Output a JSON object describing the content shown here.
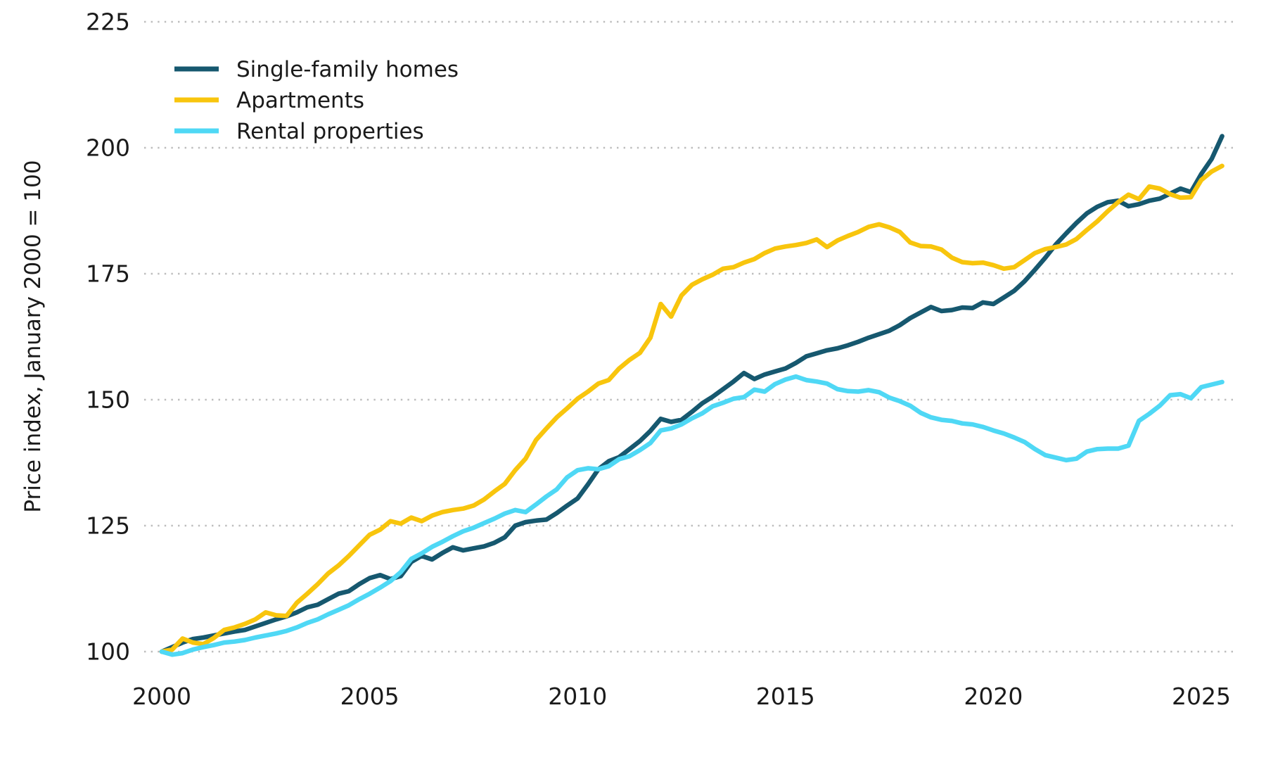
{
  "chart_data": {
    "type": "line",
    "title": "",
    "xlabel": "",
    "ylabel": "Price index, January 2000 = 100",
    "grid": "horizontal-dotted",
    "legend_position": "top-left",
    "background_color": "#ffffff",
    "gridline_color": "#bdbdbd",
    "text_color": "#1a1a1a",
    "x_start": 2000,
    "x_step": 0.25,
    "x_end": 2025.5,
    "y_ticks": [
      100,
      125,
      150,
      175,
      200,
      225
    ],
    "y_tick_labels": [
      "100",
      "125",
      "150",
      "175",
      "200",
      "225"
    ],
    "x_ticks": [
      2000,
      2005,
      2010,
      2015,
      2020,
      2025
    ],
    "x_tick_labels": [
      "2000",
      "2005",
      "2010",
      "2015",
      "2020",
      "2025"
    ],
    "ylim": [
      96,
      228
    ],
    "xlim": [
      1999.6,
      2026.2
    ],
    "series": [
      {
        "name": "Single-family homes",
        "color": "#16586F",
        "values": [
          100.0,
          100.9,
          101.8,
          102.5,
          102.8,
          103.2,
          103.6,
          104.0,
          104.3,
          105.0,
          105.7,
          106.4,
          107.0,
          107.8,
          108.8,
          109.3,
          110.4,
          111.5,
          112.0,
          113.4,
          114.6,
          115.2,
          114.4,
          115.0,
          117.8,
          119.0,
          118.3,
          119.6,
          120.7,
          120.1,
          120.5,
          120.9,
          121.6,
          122.7,
          125.0,
          125.7,
          126.0,
          126.2,
          127.5,
          129.0,
          130.4,
          133.2,
          136.2,
          137.8,
          138.6,
          140.2,
          141.8,
          143.8,
          146.2,
          145.6,
          146.0,
          147.6,
          149.3,
          150.6,
          152.1,
          153.6,
          155.3,
          154.1,
          155.0,
          155.6,
          156.2,
          157.3,
          158.6,
          159.2,
          159.8,
          160.2,
          160.8,
          161.5,
          162.3,
          163.0,
          163.7,
          164.8,
          166.2,
          167.3,
          168.4,
          167.6,
          167.8,
          168.3,
          168.2,
          169.3,
          169.0,
          170.3,
          171.6,
          173.5,
          175.8,
          178.2,
          180.8,
          183.0,
          185.1,
          187.0,
          188.3,
          189.2,
          189.5,
          188.4,
          188.8,
          189.5,
          189.9,
          190.9,
          191.9,
          191.2,
          194.8,
          197.8,
          202.3
        ]
      },
      {
        "name": "Apartments",
        "color": "#F8C50D",
        "values": [
          100.0,
          100.4,
          102.6,
          101.8,
          101.5,
          102.7,
          104.3,
          104.8,
          105.5,
          106.4,
          107.8,
          107.2,
          107.1,
          109.7,
          111.5,
          113.4,
          115.5,
          117.1,
          119.0,
          121.1,
          123.2,
          124.2,
          125.9,
          125.4,
          126.6,
          125.9,
          127.0,
          127.7,
          128.1,
          128.4,
          129.0,
          130.2,
          131.8,
          133.3,
          136.0,
          138.3,
          142.0,
          144.3,
          146.5,
          148.3,
          150.2,
          151.6,
          153.2,
          153.9,
          156.2,
          157.9,
          159.3,
          162.3,
          169.0,
          166.5,
          170.7,
          172.8,
          173.9,
          174.8,
          176.0,
          176.3,
          177.2,
          177.9,
          179.1,
          180.0,
          180.4,
          180.7,
          181.1,
          181.8,
          180.3,
          181.6,
          182.5,
          183.3,
          184.3,
          184.8,
          184.2,
          183.3,
          181.2,
          180.5,
          180.4,
          179.8,
          178.2,
          177.3,
          177.1,
          177.2,
          176.7,
          176.0,
          176.3,
          177.7,
          179.1,
          179.9,
          180.3,
          180.8,
          181.9,
          183.7,
          185.4,
          187.4,
          189.2,
          190.7,
          189.8,
          192.3,
          191.9,
          190.8,
          190.1,
          190.2,
          193.6,
          195.3,
          196.4
        ]
      },
      {
        "name": "Rental properties",
        "color": "#4FD8F5",
        "values": [
          100.0,
          99.4,
          99.7,
          100.4,
          100.9,
          101.3,
          101.8,
          102.0,
          102.3,
          102.8,
          103.2,
          103.6,
          104.1,
          104.8,
          105.7,
          106.4,
          107.4,
          108.3,
          109.2,
          110.4,
          111.5,
          112.7,
          114.0,
          115.8,
          118.4,
          119.5,
          120.8,
          121.8,
          122.9,
          123.9,
          124.6,
          125.5,
          126.4,
          127.4,
          128.1,
          127.7,
          129.2,
          130.8,
          132.2,
          134.6,
          136.0,
          136.4,
          136.2,
          136.8,
          138.2,
          138.8,
          140.0,
          141.4,
          143.9,
          144.3,
          145.1,
          146.3,
          147.3,
          148.7,
          149.4,
          150.2,
          150.5,
          152.0,
          151.6,
          153.1,
          154.0,
          154.6,
          153.9,
          153.6,
          153.2,
          152.1,
          151.7,
          151.6,
          151.9,
          151.5,
          150.4,
          149.7,
          148.8,
          147.4,
          146.5,
          146.0,
          145.8,
          145.3,
          145.1,
          144.6,
          143.9,
          143.3,
          142.5,
          141.6,
          140.2,
          139.0,
          138.5,
          138.0,
          138.3,
          139.7,
          140.2,
          140.3,
          140.3,
          140.9,
          145.8,
          147.2,
          148.8,
          150.9,
          151.1,
          150.3,
          152.5,
          153.0,
          153.5
        ]
      }
    ]
  }
}
